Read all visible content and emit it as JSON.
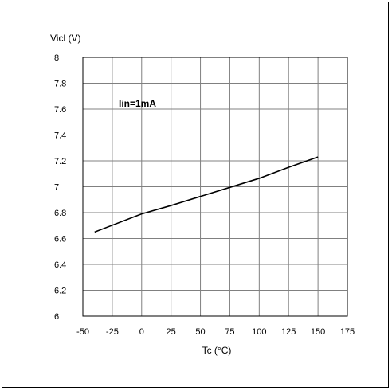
{
  "chart_data": {
    "type": "line",
    "ylabel": "Vicl (V)",
    "xlabel": "Tc (°C)",
    "annotation": "Iin=1mA",
    "xlim": [
      -50,
      175
    ],
    "ylim": [
      6,
      8
    ],
    "x_ticks": [
      "-50",
      "-25",
      "0",
      "25",
      "50",
      "75",
      "100",
      "125",
      "150",
      "175"
    ],
    "y_ticks": [
      "6",
      "6.2",
      "6.4",
      "6.6",
      "6.8",
      "7",
      "7.2",
      "7.4",
      "7.6",
      "7.8",
      "8"
    ],
    "grid": true,
    "series": [
      {
        "x": [
          -40,
          0,
          25,
          50,
          75,
          100,
          125,
          150
        ],
        "y": [
          6.65,
          6.79,
          6.855,
          6.925,
          6.995,
          7.065,
          7.15,
          7.23
        ],
        "color": "#000000"
      }
    ]
  }
}
